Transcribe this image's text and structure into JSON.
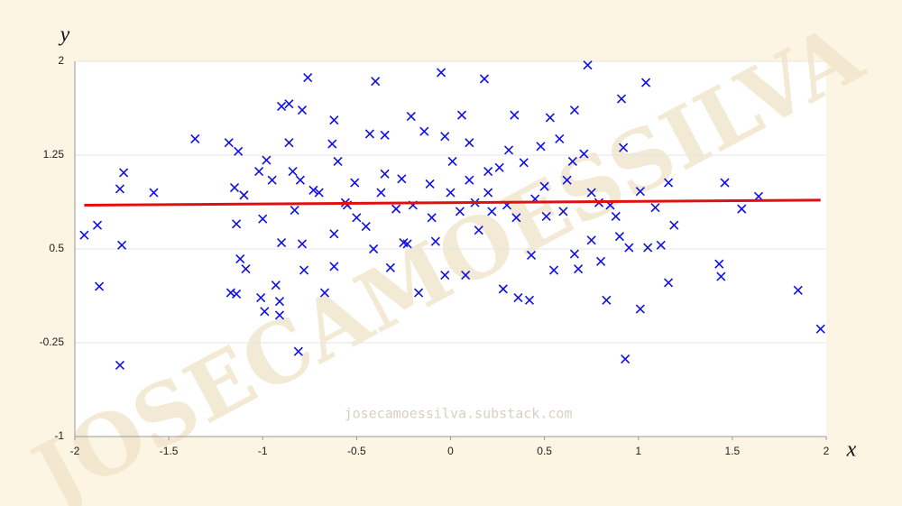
{
  "chart_data": {
    "type": "scatter",
    "xlabel": "x",
    "ylabel": "y",
    "watermark": "JOSECAMOESSILVA",
    "footer": "josecamoessilva.substack.com",
    "xlim": [
      -2,
      2
    ],
    "ylim": [
      -1,
      2
    ],
    "xticks": [
      -2,
      -1.5,
      -1,
      -0.5,
      0,
      0.5,
      1,
      1.5,
      2
    ],
    "yticks": [
      -1,
      -0.25,
      0.5,
      1.25,
      2
    ],
    "grid": true,
    "series": [
      {
        "color": "#1010e0",
        "x": [
          -1.95,
          -1.88,
          -1.87,
          -1.76,
          -1.74,
          -1.75,
          -1.76,
          -1.58,
          -1.36,
          -1.18,
          -1.15,
          -1.13,
          -1.1,
          -1.17,
          -1.14,
          -1.12,
          -1.09,
          -1.14,
          -1.02,
          -1.0,
          -1.01,
          -0.99,
          -0.98,
          -0.95,
          -0.93,
          -0.91,
          -0.91,
          -0.9,
          -0.86,
          -0.86,
          -0.84,
          -0.83,
          -0.81,
          -0.79,
          -0.76,
          -0.79,
          -0.78,
          -0.73,
          -0.67,
          -0.63,
          -0.62,
          -0.62,
          -0.62,
          -0.56,
          -0.51,
          -0.45,
          -0.43,
          -0.4,
          -0.41,
          -0.37,
          -0.35,
          -0.32,
          -0.29,
          -0.26,
          -0.23,
          -0.21,
          -0.17,
          -0.14,
          -0.11,
          -0.08,
          -0.05,
          -0.03,
          -0.03,
          0.01,
          0.06,
          0.08,
          0.1,
          0.13,
          0.18,
          0.2,
          0.22,
          0.26,
          0.28,
          0.31,
          0.34,
          0.36,
          0.39,
          0.42,
          0.43,
          0.48,
          0.51,
          0.53,
          0.55,
          0.58,
          0.62,
          0.66,
          0.66,
          0.68,
          0.71,
          0.73,
          0.75,
          0.79,
          0.8,
          0.83,
          0.88,
          0.91,
          0.92,
          0.93,
          0.95,
          1.01,
          1.01,
          1.04,
          1.05,
          1.09,
          1.12,
          1.16,
          1.16,
          1.19,
          1.43,
          1.44,
          1.46,
          1.55,
          1.64,
          1.85,
          1.97,
          -0.9,
          -0.7,
          -0.55,
          -0.2,
          0,
          0.2,
          0.3,
          0.45,
          0.6,
          -0.35,
          0.1,
          -0.1,
          0.35,
          0.75,
          0.85,
          -0.8,
          -0.5,
          0.05,
          0.5,
          -0.25,
          0.15,
          0.65,
          -0.6,
          0.9
        ],
        "y": [
          0.61,
          0.69,
          0.2,
          0.98,
          1.11,
          0.53,
          -0.43,
          0.95,
          1.38,
          1.35,
          0.99,
          1.28,
          0.93,
          0.15,
          0.14,
          0.42,
          0.34,
          0.7,
          1.12,
          0.74,
          0.11,
          0.0,
          1.21,
          1.05,
          0.21,
          0.08,
          -0.03,
          1.64,
          1.66,
          1.35,
          1.12,
          0.81,
          -0.32,
          1.61,
          1.87,
          0.54,
          0.33,
          0.97,
          0.15,
          1.34,
          1.53,
          0.62,
          0.36,
          0.87,
          1.03,
          0.68,
          1.42,
          1.84,
          0.5,
          0.95,
          1.41,
          0.35,
          0.82,
          1.06,
          0.54,
          1.56,
          0.15,
          1.44,
          1.02,
          0.56,
          1.91,
          1.4,
          0.29,
          1.2,
          1.57,
          0.29,
          1.35,
          0.87,
          1.86,
          1.12,
          0.8,
          1.15,
          0.18,
          1.29,
          1.57,
          0.11,
          1.19,
          0.09,
          0.45,
          1.32,
          0.76,
          1.55,
          0.33,
          1.38,
          1.05,
          0.46,
          1.61,
          0.34,
          1.26,
          1.97,
          0.57,
          0.87,
          0.4,
          0.09,
          0.76,
          1.7,
          1.31,
          -0.38,
          0.51,
          0.96,
          0.02,
          1.83,
          0.51,
          0.83,
          0.53,
          1.03,
          0.23,
          0.69,
          0.38,
          0.28,
          1.03,
          0.82,
          0.92,
          0.17,
          -0.14,
          0.55,
          0.95,
          0.85,
          0.85,
          0.95,
          0.95,
          0.85,
          0.9,
          0.8,
          1.1,
          1.05,
          0.75,
          0.75,
          0.95,
          0.85,
          1.05,
          0.75,
          0.8,
          1.0,
          0.55,
          0.65,
          1.2,
          1.2,
          0.6
        ]
      }
    ],
    "fit": {
      "color": "#e01010",
      "x": [
        -1.95,
        1.97
      ],
      "y": [
        0.85,
        0.89
      ]
    }
  }
}
